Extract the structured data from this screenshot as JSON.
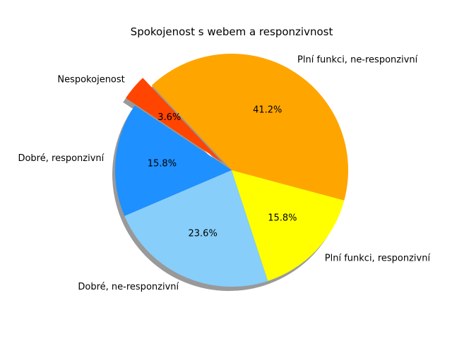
{
  "chart_data": {
    "type": "pie",
    "title": "Spokojenost s webem a responzivnost",
    "slices": [
      {
        "label": "Plní funkci, ne-responzivní",
        "value": 41.2,
        "pct_label": "41.2%",
        "color": "#FFA500",
        "explode": 0
      },
      {
        "label": "Nespokojenost",
        "value": 3.6,
        "pct_label": "3.6%",
        "color": "#FF4500",
        "explode": 0.1
      },
      {
        "label": "Dobré, responzivní",
        "value": 15.8,
        "pct_label": "15.8%",
        "color": "#1E90FF",
        "explode": 0
      },
      {
        "label": "Dobré, ne-responzivní",
        "value": 23.6,
        "pct_label": "23.6%",
        "color": "#87CEFA",
        "explode": 0
      },
      {
        "label": "Plní funkci, responzivní",
        "value": 15.8,
        "pct_label": "15.8%",
        "color": "#FFFF00",
        "explode": 0
      }
    ],
    "start_angle_deg": -15,
    "direction": "counterclockwise",
    "shadow": true,
    "shadow_color": "#808080"
  }
}
